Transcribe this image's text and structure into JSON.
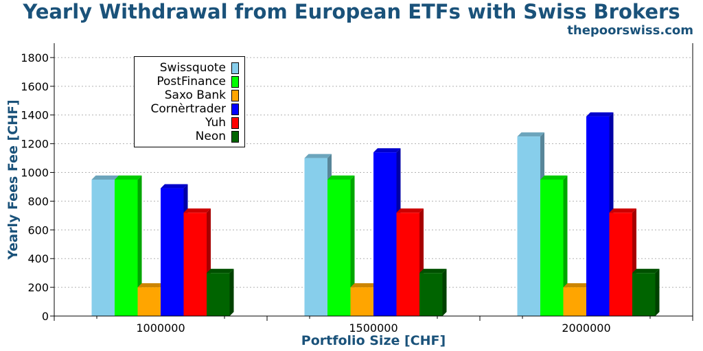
{
  "header": {
    "title": "Yearly Withdrawal from European ETFs with Swiss Brokers",
    "source": "thepoorswiss.com"
  },
  "chart_data": {
    "type": "bar",
    "title": "Yearly Withdrawal from European ETFs with Swiss Brokers",
    "xlabel": "Portfolio Size [CHF]",
    "ylabel": "Yearly Fees Fee [CHF]",
    "ylim": [
      0,
      1900
    ],
    "yticks": [
      0,
      200,
      400,
      600,
      800,
      1000,
      1200,
      1400,
      1600,
      1800
    ],
    "grid": "y",
    "legend_position": "top-left",
    "categories": [
      "1000000",
      "1500000",
      "2000000"
    ],
    "series": [
      {
        "name": "Swissquote",
        "color": "#87ceeb",
        "values": [
          950,
          1100,
          1250
        ]
      },
      {
        "name": "PostFinance",
        "color": "#00ff00",
        "values": [
          950,
          950,
          950
        ]
      },
      {
        "name": "Saxo Bank",
        "color": "#ffa500",
        "values": [
          200,
          200,
          200
        ]
      },
      {
        "name": "Cornèrtrader",
        "color": "#0000ff",
        "values": [
          890,
          1140,
          1390
        ]
      },
      {
        "name": "Yuh",
        "color": "#ff0000",
        "values": [
          720,
          720,
          720
        ]
      },
      {
        "name": "Neon",
        "color": "#006400",
        "values": [
          300,
          300,
          300
        ]
      }
    ]
  }
}
